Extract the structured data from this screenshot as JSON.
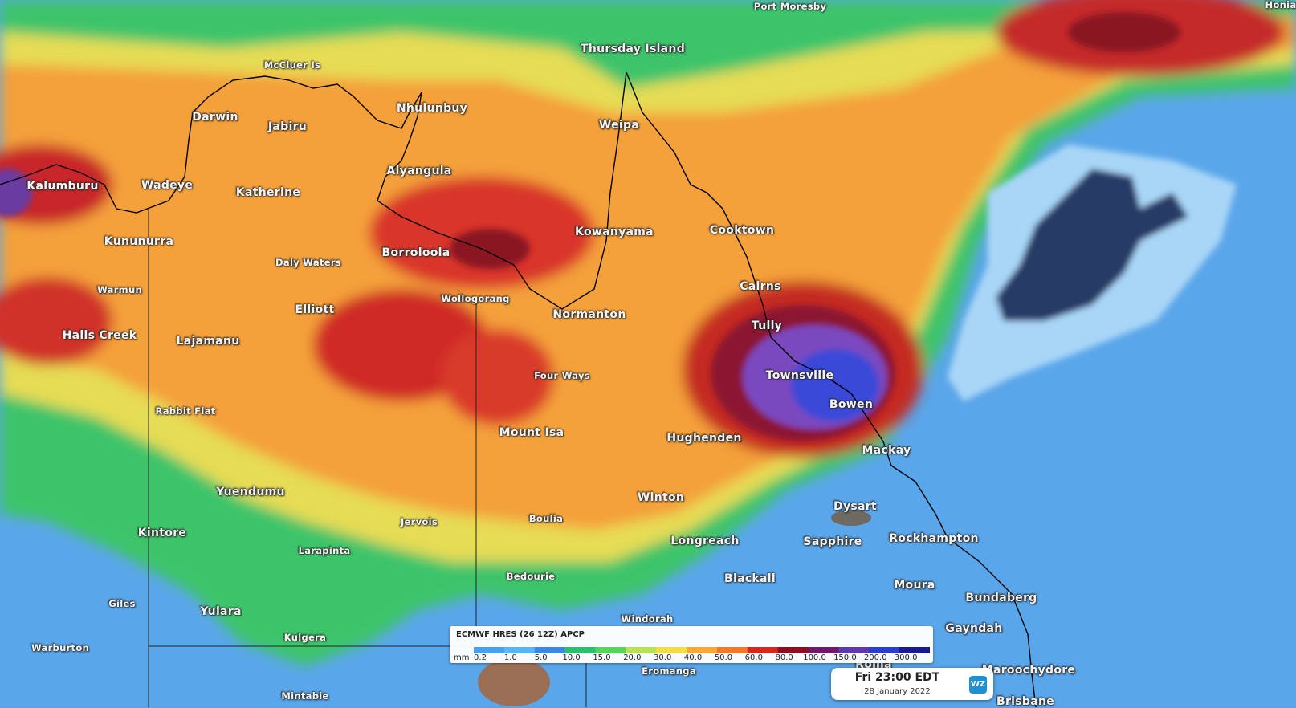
{
  "map": {
    "model_label": "ECMWF HRES (26 12Z) APCP",
    "legend": {
      "units": "mm",
      "ticks": [
        "0.2",
        "1.0",
        "5.0",
        "10.0",
        "15.0",
        "20.0",
        "30.0",
        "40.0",
        "50.0",
        "60.0",
        "80.0",
        "100.0",
        "150.0",
        "200.0",
        "300.0"
      ],
      "colors": [
        "#4aa0ea",
        "#5bb5f0",
        "#3f86e0",
        "#2dbd6f",
        "#58d35e",
        "#b9e05a",
        "#f3dc4a",
        "#f6a93a",
        "#f2792b",
        "#d2281e",
        "#8a0f1f",
        "#6e1a6a",
        "#5e3aa8",
        "#2b3ec8",
        "#1a1a8a"
      ]
    },
    "valid_time": "Fri 23:00 EDT",
    "valid_date": "28 January 2022",
    "logo_text": "WZ",
    "places": [
      {
        "id": "port-moresby",
        "name": "Port Moresby",
        "size": "small"
      },
      {
        "id": "honiara",
        "name": "Honia",
        "size": "small"
      },
      {
        "id": "thursday-island",
        "name": "Thursday Island",
        "size": "normal"
      },
      {
        "id": "mccluer-is",
        "name": "McCluer Is",
        "size": "small"
      },
      {
        "id": "nhulunbuy",
        "name": "Nhulunbuy",
        "size": "normal"
      },
      {
        "id": "darwin",
        "name": "Darwin",
        "size": "normal"
      },
      {
        "id": "jabiru",
        "name": "Jabiru",
        "size": "normal"
      },
      {
        "id": "weipa",
        "name": "Weipa",
        "size": "normal"
      },
      {
        "id": "alyangula",
        "name": "Alyangula",
        "size": "normal"
      },
      {
        "id": "kalumburu",
        "name": "Kalumburu",
        "size": "normal"
      },
      {
        "id": "wadeye",
        "name": "Wadeye",
        "size": "normal"
      },
      {
        "id": "katherine",
        "name": "Katherine",
        "size": "normal"
      },
      {
        "id": "kowanyama",
        "name": "Kowanyama",
        "size": "normal"
      },
      {
        "id": "cooktown",
        "name": "Cooktown",
        "size": "normal"
      },
      {
        "id": "kununurra",
        "name": "Kununurra",
        "size": "normal"
      },
      {
        "id": "borroloola",
        "name": "Borroloola",
        "size": "normal"
      },
      {
        "id": "daly-waters",
        "name": "Daly Waters",
        "size": "small"
      },
      {
        "id": "cairns",
        "name": "Cairns",
        "size": "normal"
      },
      {
        "id": "warmun",
        "name": "Warmun",
        "size": "small"
      },
      {
        "id": "wollogorang",
        "name": "Wollogorang",
        "size": "small"
      },
      {
        "id": "elliott",
        "name": "Elliott",
        "size": "normal"
      },
      {
        "id": "normanton",
        "name": "Normanton",
        "size": "normal"
      },
      {
        "id": "tully",
        "name": "Tully",
        "size": "normal"
      },
      {
        "id": "halls-creek",
        "name": "Halls Creek",
        "size": "normal"
      },
      {
        "id": "lajamanu",
        "name": "Lajamanu",
        "size": "normal"
      },
      {
        "id": "four-ways",
        "name": "Four Ways",
        "size": "small"
      },
      {
        "id": "townsville",
        "name": "Townsville",
        "size": "normal"
      },
      {
        "id": "bowen",
        "name": "Bowen",
        "size": "normal"
      },
      {
        "id": "rabbit-flat",
        "name": "Rabbit Flat",
        "size": "small"
      },
      {
        "id": "mount-isa",
        "name": "Mount Isa",
        "size": "normal"
      },
      {
        "id": "hughenden",
        "name": "Hughenden",
        "size": "normal"
      },
      {
        "id": "mackay",
        "name": "Mackay",
        "size": "normal"
      },
      {
        "id": "yuendumu",
        "name": "Yuendumu",
        "size": "normal"
      },
      {
        "id": "winton",
        "name": "Winton",
        "size": "normal"
      },
      {
        "id": "dysart",
        "name": "Dysart",
        "size": "normal"
      },
      {
        "id": "jervois",
        "name": "Jervois",
        "size": "small"
      },
      {
        "id": "boulia",
        "name": "Boulia",
        "size": "small"
      },
      {
        "id": "kintore",
        "name": "Kintore",
        "size": "normal"
      },
      {
        "id": "longreach",
        "name": "Longreach",
        "size": "normal"
      },
      {
        "id": "sapphire",
        "name": "Sapphire",
        "size": "normal"
      },
      {
        "id": "rockhampton",
        "name": "Rockhampton",
        "size": "normal"
      },
      {
        "id": "larapinta",
        "name": "Larapinta",
        "size": "small"
      },
      {
        "id": "bedourie",
        "name": "Bedourie",
        "size": "small"
      },
      {
        "id": "blackall",
        "name": "Blackall",
        "size": "normal"
      },
      {
        "id": "moura",
        "name": "Moura",
        "size": "normal"
      },
      {
        "id": "bundaberg",
        "name": "Bundaberg",
        "size": "normal"
      },
      {
        "id": "giles",
        "name": "Giles",
        "size": "small"
      },
      {
        "id": "yulara",
        "name": "Yulara",
        "size": "normal"
      },
      {
        "id": "windorah",
        "name": "Windorah",
        "size": "small"
      },
      {
        "id": "gayndah",
        "name": "Gayndah",
        "size": "normal"
      },
      {
        "id": "warburton",
        "name": "Warburton",
        "size": "small"
      },
      {
        "id": "kulgera",
        "name": "Kulgera",
        "size": "small"
      },
      {
        "id": "roma",
        "name": "Roma",
        "size": "normal"
      },
      {
        "id": "maroochydore",
        "name": "Maroochydore",
        "size": "normal"
      },
      {
        "id": "eromanga",
        "name": "Eromanga",
        "size": "small"
      },
      {
        "id": "mintabie",
        "name": "Mintabie",
        "size": "small"
      },
      {
        "id": "brisbane",
        "name": "Brisbane",
        "size": "normal"
      }
    ]
  }
}
